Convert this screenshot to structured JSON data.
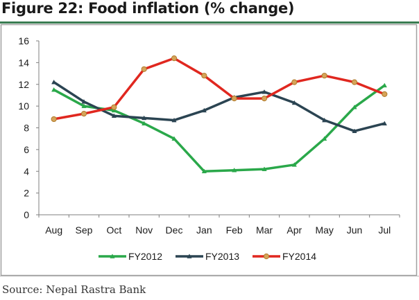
{
  "header": {
    "title": "Figure 22: Food inflation (% change)"
  },
  "footer": {
    "source": "Source: Nepal Rastra Bank"
  },
  "colors": {
    "FY2012": "#2aa84a",
    "FY2013": "#2b4452",
    "FY2014": "#e0271f",
    "marker_fill_2014": "#d6a45a",
    "frame": "#a0a0a0",
    "axis": "#7f7f7f",
    "rule": "#3a7d52"
  },
  "chart_data": {
    "type": "line",
    "title": "Figure 22: Food inflation (% change)",
    "xlabel": "",
    "ylabel": "",
    "categories": [
      "Aug",
      "Sep",
      "Oct",
      "Nov",
      "Dec",
      "Jan",
      "Feb",
      "Mar",
      "Apr",
      "May",
      "Jun",
      "Jul"
    ],
    "y_ticks": [
      0,
      2,
      4,
      6,
      8,
      10,
      12,
      14,
      16
    ],
    "ylim": [
      0,
      16
    ],
    "grid": false,
    "legend_position": "bottom",
    "series": [
      {
        "name": "FY2012",
        "marker": "triangle",
        "values": [
          11.5,
          10.0,
          9.6,
          8.4,
          7.0,
          4.0,
          4.1,
          4.2,
          4.6,
          7.0,
          9.9,
          11.9
        ]
      },
      {
        "name": "FY2013",
        "marker": "triangle",
        "values": [
          12.2,
          10.4,
          9.1,
          8.9,
          8.7,
          9.6,
          10.8,
          11.3,
          10.3,
          8.7,
          7.7,
          8.4
        ]
      },
      {
        "name": "FY2014",
        "marker": "circle",
        "values": [
          8.8,
          9.3,
          9.9,
          13.4,
          14.4,
          12.8,
          10.7,
          10.7,
          12.2,
          12.8,
          12.2,
          11.1
        ]
      }
    ]
  }
}
